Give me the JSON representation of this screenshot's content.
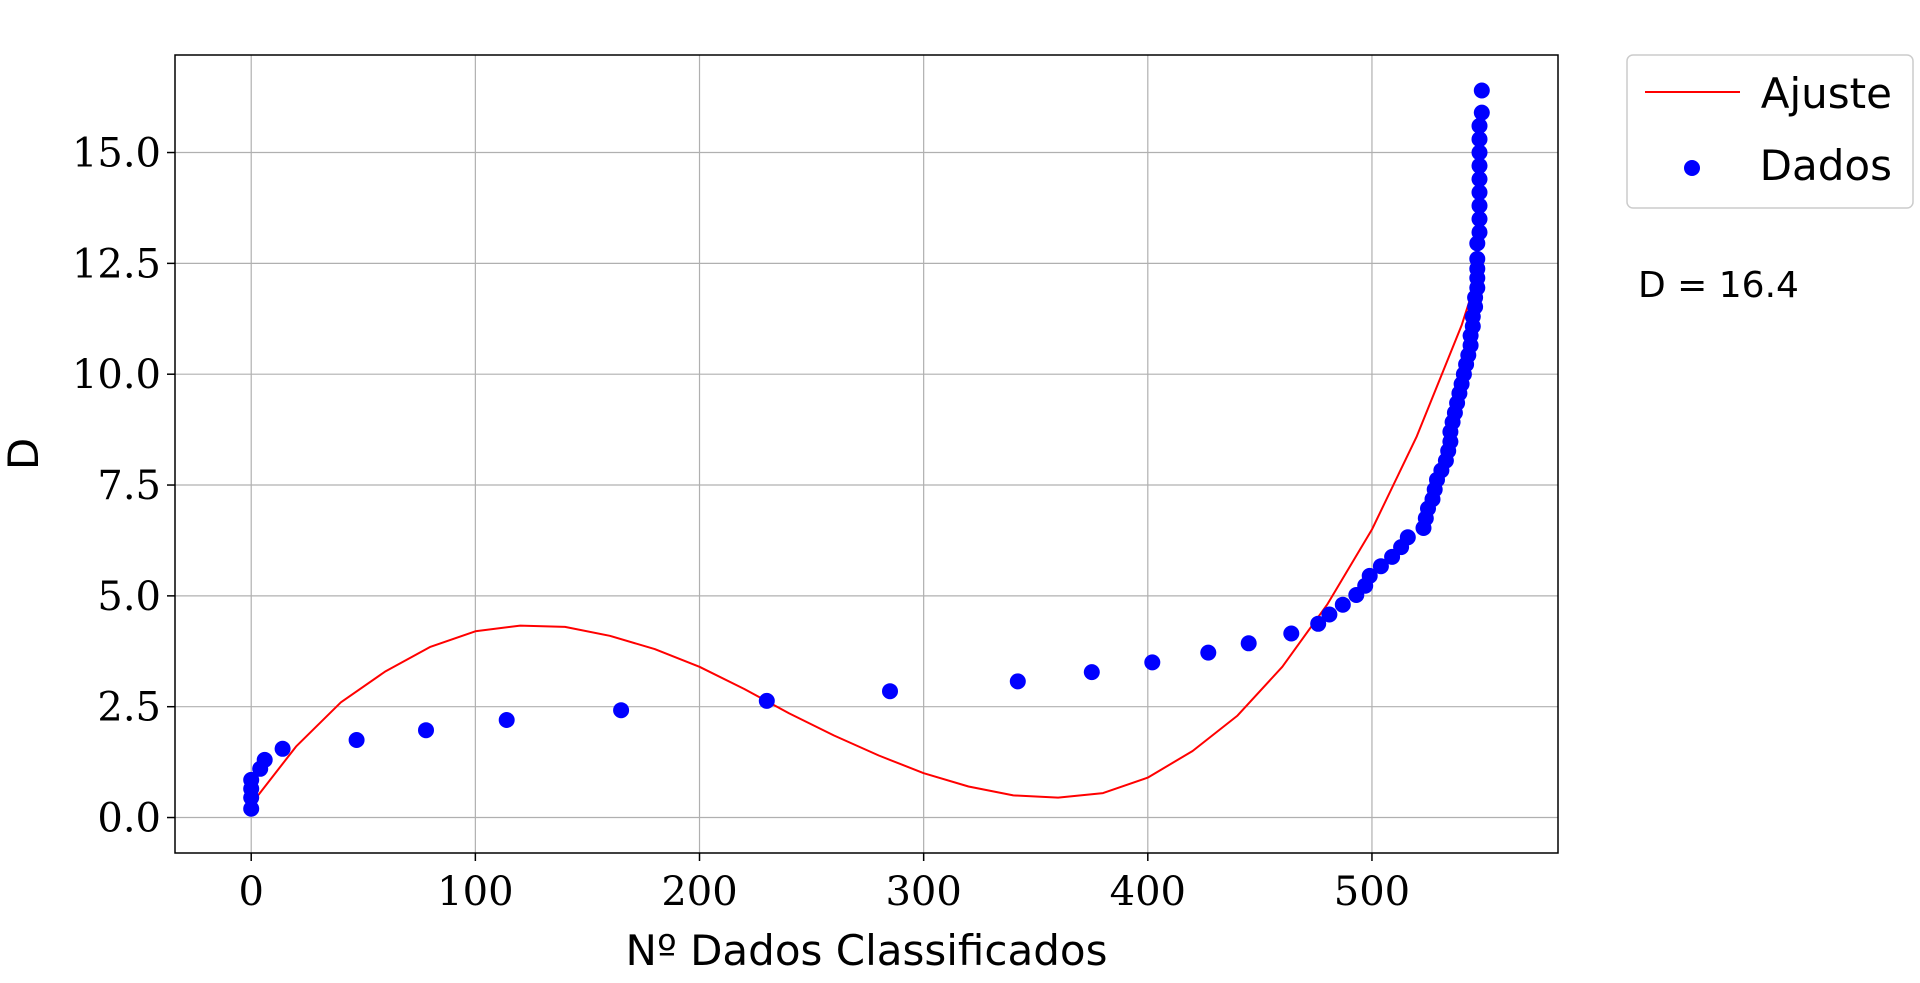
{
  "chart_data": {
    "type": "scatter",
    "xlabel": "Nº Dados Classificados",
    "ylabel": "D",
    "xlim": [
      -34,
      583
    ],
    "ylim": [
      -0.8,
      17.2
    ],
    "xticks": [
      0,
      100,
      200,
      300,
      400,
      500
    ],
    "yticks": [
      0.0,
      2.5,
      5.0,
      7.5,
      10.0,
      12.5,
      15.0
    ],
    "xtick_labels": [
      "0",
      "100",
      "200",
      "300",
      "400",
      "500"
    ],
    "ytick_labels": [
      "0.0",
      "2.5",
      "5.0",
      "7.5",
      "10.0",
      "12.5",
      "15.0"
    ],
    "grid": true,
    "legend_position": "outside-top-right",
    "annotation": "D = 16.4",
    "series": [
      {
        "name": "Ajuste",
        "kind": "line",
        "color": "#ff0000",
        "x": [
          0,
          20,
          40,
          60,
          80,
          100,
          120,
          140,
          160,
          180,
          200,
          220,
          240,
          260,
          280,
          300,
          320,
          340,
          360,
          380,
          400,
          420,
          440,
          460,
          480,
          500,
          520,
          540,
          547
        ],
        "y": [
          0.3,
          1.6,
          2.6,
          3.3,
          3.85,
          4.2,
          4.33,
          4.3,
          4.1,
          3.8,
          3.4,
          2.9,
          2.35,
          1.85,
          1.4,
          1.0,
          0.7,
          0.5,
          0.45,
          0.55,
          0.9,
          1.5,
          2.3,
          3.4,
          4.8,
          6.5,
          8.6,
          11.1,
          12.2
        ]
      },
      {
        "name": "Dados",
        "kind": "scatter",
        "color": "#0000ff",
        "x": [
          0,
          0,
          0,
          0,
          4,
          6,
          14,
          47,
          78,
          114,
          165,
          230,
          285,
          342,
          375,
          402,
          427,
          445,
          464,
          476,
          481,
          487,
          493,
          497,
          499,
          504,
          509,
          513,
          516,
          523,
          524,
          525,
          527,
          528,
          529,
          531,
          533,
          534,
          535,
          535,
          536,
          537,
          538,
          539,
          540,
          541,
          542,
          543,
          544,
          544,
          545,
          545,
          546,
          546,
          547,
          547,
          547,
          547,
          547,
          548,
          548,
          548,
          548,
          548,
          548,
          548,
          548,
          548,
          549,
          549
        ],
        "y": [
          0.2,
          0.45,
          0.65,
          0.85,
          1.1,
          1.3,
          1.55,
          1.75,
          1.97,
          2.2,
          2.42,
          2.63,
          2.85,
          3.07,
          3.28,
          3.5,
          3.72,
          3.93,
          4.15,
          4.37,
          4.58,
          4.8,
          5.02,
          5.23,
          5.45,
          5.67,
          5.88,
          6.1,
          6.32,
          6.53,
          6.75,
          6.97,
          7.18,
          7.4,
          7.62,
          7.83,
          8.05,
          8.27,
          8.48,
          8.7,
          8.92,
          9.13,
          9.35,
          9.57,
          9.78,
          10.0,
          10.22,
          10.43,
          10.65,
          10.87,
          11.08,
          11.3,
          11.52,
          11.73,
          11.95,
          12.17,
          12.38,
          12.6,
          12.95,
          13.2,
          13.5,
          13.8,
          14.1,
          14.4,
          14.7,
          15.0,
          15.3,
          15.6,
          15.9,
          16.4
        ]
      }
    ]
  }
}
